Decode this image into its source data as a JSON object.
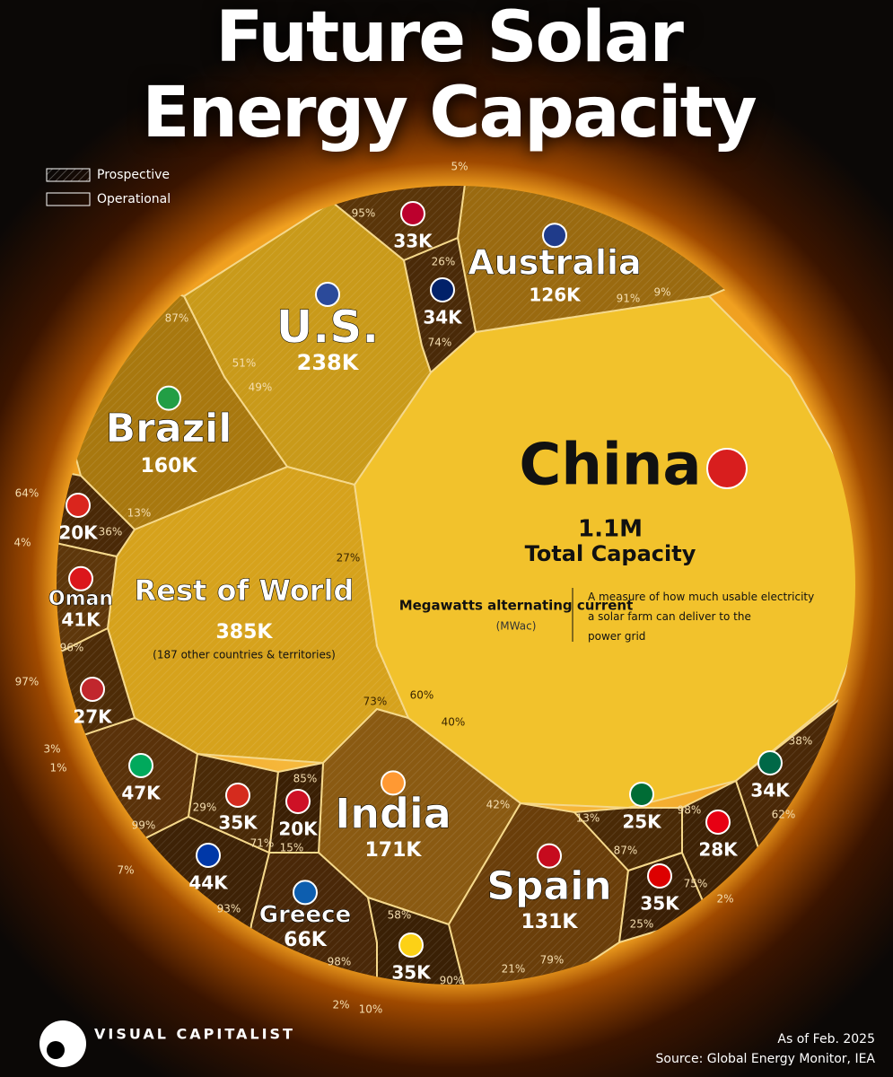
{
  "chart_data": {
    "type": "voronoi",
    "title": "Future Solar Energy Capacity",
    "categories": [
      "China",
      "U.S.",
      "Rest of World",
      "India",
      "Brazil",
      "Spain",
      "Australia",
      "Greece",
      null,
      null,
      "Oman",
      null,
      null,
      null,
      null,
      null,
      null,
      null,
      null,
      null,
      null,
      null
    ],
    "values": [
      1100000,
      238000,
      385000,
      171000,
      160000,
      131000,
      126000,
      66000,
      47000,
      44000,
      41000,
      35000,
      35000,
      35000,
      34000,
      34000,
      33000,
      28000,
      27000,
      25000,
      20000,
      20000
    ],
    "value_labels": [
      "1.1M",
      "238K",
      "385K",
      "171K",
      "160K",
      "131K",
      "126K",
      "66K",
      "47K",
      "44K",
      "41K",
      "35K",
      "35K",
      "35K",
      "34K",
      "34K",
      "33K",
      "28K",
      "27K",
      "25K",
      "20K",
      "20K"
    ],
    "series": [
      {
        "name": "Prospective",
        "values": [
          60,
          51,
          27,
          58,
          87,
          21,
          91,
          98,
          99,
          93,
          96,
          29,
          90,
          75,
          26,
          38,
          95,
          98,
          97,
          87,
          64,
          85
        ],
        "value_labels": [
          "60%",
          "51%",
          "27%",
          "58%",
          "87%",
          "21%",
          "91%",
          "98%",
          "99%",
          "93%",
          "96%",
          "29%",
          "90%",
          "75%",
          "26%",
          "38%",
          "95%",
          "98%",
          "97%",
          "87%",
          "64%",
          "85%"
        ]
      },
      {
        "name": "Operational",
        "values": [
          40,
          49,
          73,
          42,
          13,
          79,
          9,
          2,
          1,
          7,
          4,
          71,
          10,
          25,
          74,
          62,
          5,
          2,
          3,
          13,
          36,
          15
        ],
        "value_labels": [
          "40%",
          "49%",
          "73%",
          "42%",
          "13%",
          "79%",
          "9%",
          "2%",
          "1%",
          "7%",
          "4%",
          "71%",
          "10%",
          "25%",
          "74%",
          "62%",
          "5%",
          "2%",
          "3%",
          "13%",
          "36%",
          "15%"
        ]
      }
    ],
    "annotations": {
      "total": "Total Capacity",
      "unit": "Megawatts alternating current",
      "unit_abbr": "(MWac)",
      "unit_note": "A measure of how much usable electricity a solar farm can deliver to the power grid",
      "rest_note": "(187 other countries & territories)"
    },
    "date": "As of Feb. 2025",
    "source": "Source: Global Energy Monitor, IEA",
    "brand": "VISUAL CAPITALIST"
  }
}
